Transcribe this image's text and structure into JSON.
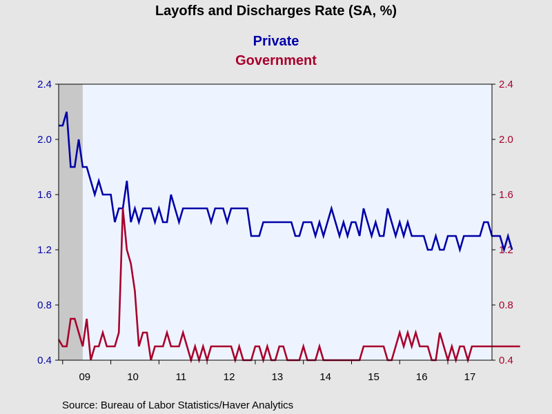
{
  "colors": {
    "background": "#e6e6e6",
    "plot_background": "#eef4ff",
    "private": "#0000a8",
    "government": "#a8002c",
    "recession_shade": "#c8c8c8"
  },
  "chart_data": {
    "type": "line",
    "title": "Layoffs and Discharges Rate (SA, %)",
    "source": "Source:  Bureau of Labor Statistics/Haver Analytics",
    "x_start": "2008-12",
    "x_end": "2017-12",
    "x_frequency": "monthly",
    "x_ticklabels": [
      "09",
      "10",
      "11",
      "12",
      "13",
      "14",
      "15",
      "16",
      "17"
    ],
    "recession_shading": {
      "start": "2008-12",
      "end": "2009-06"
    },
    "left_axis": {
      "ylim": [
        0.4,
        2.4
      ],
      "ticks": [
        "0.4",
        "0.8",
        "1.2",
        "1.6",
        "2.0",
        "2.4"
      ],
      "color": "#0000a8"
    },
    "right_axis": {
      "ylim": [
        0.4,
        2.4
      ],
      "ticks": [
        "0.4",
        "0.8",
        "1.2",
        "1.6",
        "2.0",
        "2.4"
      ],
      "color": "#a8002c"
    },
    "grid": false,
    "legend_position": "top-center",
    "series": [
      {
        "name": "Private",
        "axis": "left",
        "color": "#0000a8",
        "values": [
          2.1,
          2.1,
          2.2,
          1.8,
          1.8,
          2.0,
          1.8,
          1.8,
          1.7,
          1.6,
          1.7,
          1.6,
          1.6,
          1.6,
          1.4,
          1.5,
          1.5,
          1.7,
          1.4,
          1.5,
          1.4,
          1.5,
          1.5,
          1.5,
          1.4,
          1.5,
          1.4,
          1.4,
          1.6,
          1.5,
          1.4,
          1.5,
          1.5,
          1.5,
          1.5,
          1.5,
          1.5,
          1.5,
          1.4,
          1.5,
          1.5,
          1.5,
          1.4,
          1.5,
          1.5,
          1.5,
          1.5,
          1.5,
          1.3,
          1.3,
          1.3,
          1.4,
          1.4,
          1.4,
          1.4,
          1.4,
          1.4,
          1.4,
          1.4,
          1.3,
          1.3,
          1.4,
          1.4,
          1.4,
          1.3,
          1.4,
          1.3,
          1.4,
          1.5,
          1.4,
          1.3,
          1.4,
          1.3,
          1.4,
          1.4,
          1.3,
          1.5,
          1.4,
          1.3,
          1.4,
          1.3,
          1.3,
          1.5,
          1.4,
          1.3,
          1.4,
          1.3,
          1.4,
          1.3,
          1.3,
          1.3,
          1.3,
          1.2,
          1.2,
          1.3,
          1.2,
          1.2,
          1.3,
          1.3,
          1.3,
          1.2,
          1.3,
          1.3,
          1.3,
          1.3,
          1.3,
          1.4,
          1.4,
          1.3,
          1.3,
          1.3,
          1.2,
          1.3,
          1.2
        ]
      },
      {
        "name": "Government",
        "axis": "right",
        "color": "#a8002c",
        "values": [
          0.55,
          0.5,
          0.5,
          0.7,
          0.7,
          0.6,
          0.5,
          0.7,
          0.4,
          0.5,
          0.5,
          0.6,
          0.5,
          0.5,
          0.5,
          0.6,
          1.5,
          1.2,
          1.1,
          0.9,
          0.5,
          0.6,
          0.6,
          0.4,
          0.5,
          0.5,
          0.5,
          0.6,
          0.5,
          0.5,
          0.5,
          0.6,
          0.5,
          0.4,
          0.5,
          0.4,
          0.5,
          0.4,
          0.5,
          0.5,
          0.5,
          0.5,
          0.5,
          0.5,
          0.4,
          0.5,
          0.4,
          0.4,
          0.4,
          0.5,
          0.5,
          0.4,
          0.5,
          0.4,
          0.4,
          0.5,
          0.5,
          0.4,
          0.4,
          0.4,
          0.4,
          0.5,
          0.4,
          0.4,
          0.4,
          0.5,
          0.4,
          0.4,
          0.4,
          0.4,
          0.4,
          0.4,
          0.4,
          0.4,
          0.4,
          0.4,
          0.5,
          0.5,
          0.5,
          0.5,
          0.5,
          0.5,
          0.4,
          0.4,
          0.5,
          0.6,
          0.5,
          0.6,
          0.5,
          0.6,
          0.5,
          0.5,
          0.5,
          0.4,
          0.4,
          0.6,
          0.5,
          0.4,
          0.5,
          0.4,
          0.5,
          0.5,
          0.4,
          0.5,
          0.5,
          0.5,
          0.5,
          0.5,
          0.5,
          0.5,
          0.5,
          0.5,
          0.5,
          0.5,
          0.5,
          0.5
        ]
      }
    ]
  }
}
